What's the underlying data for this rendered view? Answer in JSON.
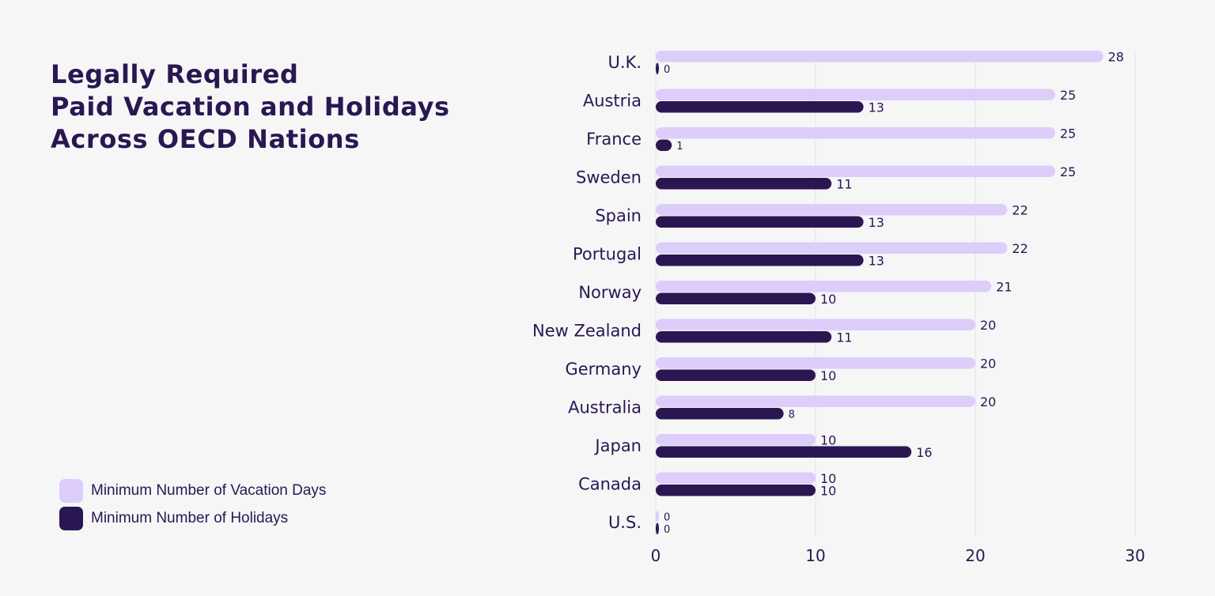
{
  "title_lines": [
    "Legally Required",
    "Paid Vacation and Holidays",
    "Across OECD Nations"
  ],
  "colors": {
    "vacation": "#dccdfa",
    "holidays": "#2a1752",
    "text": "#2a1752",
    "grid": "#e3e3e6",
    "background": "#f6f6f7"
  },
  "legend": [
    {
      "label": "Minimum Number of Vacation Days",
      "color": "#dccdfa"
    },
    {
      "label": "Minimum Number of Holidays",
      "color": "#2a1752"
    }
  ],
  "chart_data": {
    "type": "bar",
    "orientation": "horizontal",
    "categories": [
      "U.K.",
      "Austria",
      "France",
      "Sweden",
      "Spain",
      "Portugal",
      "Norway",
      "New Zealand",
      "Germany",
      "Australia",
      "Japan",
      "Canada",
      "U.S."
    ],
    "series": [
      {
        "name": "Minimum Number of Vacation Days",
        "values": [
          28,
          25,
          25,
          25,
          22,
          22,
          21,
          20,
          20,
          20,
          10,
          10,
          0
        ]
      },
      {
        "name": "Minimum Number of Holidays",
        "values": [
          0,
          13,
          1,
          11,
          13,
          13,
          10,
          11,
          10,
          8,
          16,
          10,
          0
        ]
      }
    ],
    "title": "Legally Required Paid Vacation and Holidays Across OECD Nations",
    "xlabel": "",
    "ylabel": "",
    "xlim": [
      0,
      30
    ],
    "xticks": [
      0,
      10,
      20,
      30
    ],
    "grid": true,
    "legend_position": "bottom-left"
  }
}
